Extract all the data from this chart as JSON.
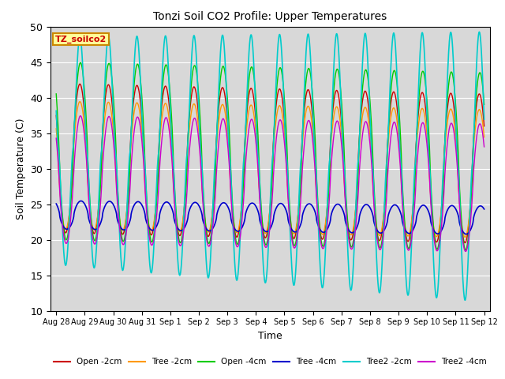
{
  "title": "Tonzi Soil CO2 Profile: Upper Temperatures",
  "xlabel": "Time",
  "ylabel": "Soil Temperature (C)",
  "ylim": [
    10,
    50
  ],
  "yticks": [
    10,
    15,
    20,
    25,
    30,
    35,
    40,
    45,
    50
  ],
  "background_color": "#d8d8d8",
  "legend_label": "TZ_soilco2",
  "legend_box_color": "#ffff99",
  "legend_box_edge": "#cc8800",
  "series": [
    {
      "label": "Open -2cm",
      "color": "#cc0000",
      "lw": 1.0
    },
    {
      "label": "Tree -2cm",
      "color": "#ff9900",
      "lw": 1.0
    },
    {
      "label": "Open -4cm",
      "color": "#00cc00",
      "lw": 1.0
    },
    {
      "label": "Tree -4cm",
      "color": "#0000cc",
      "lw": 1.2
    },
    {
      "label": "Tree2 -2cm",
      "color": "#00cccc",
      "lw": 1.2
    },
    {
      "label": "Tree2 -4cm",
      "color": "#cc00cc",
      "lw": 1.0
    }
  ],
  "xtick_labels": [
    "Aug 28",
    "Aug 29",
    "Aug 30",
    "Aug 31",
    "Sep 1",
    "Sep 2",
    "Sep 3",
    "Sep 4",
    "Sep 5",
    "Sep 6",
    "Sep 7",
    "Sep 8",
    "Sep 9",
    "Sep 10",
    "Sep 11",
    "Sep 12"
  ],
  "xtick_positions": [
    0,
    1,
    2,
    3,
    4,
    5,
    6,
    7,
    8,
    9,
    10,
    11,
    12,
    13,
    14,
    15
  ],
  "n_days": 15
}
